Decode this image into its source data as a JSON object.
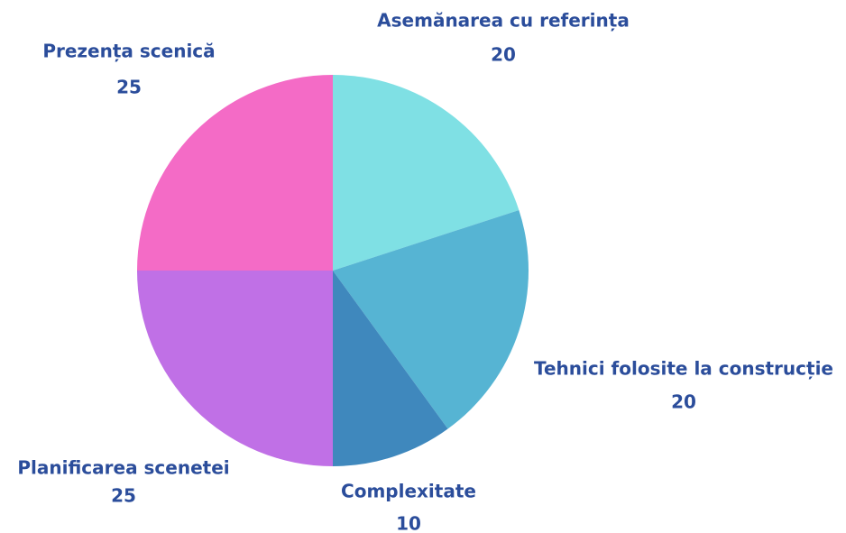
{
  "chart_data": {
    "type": "pie",
    "categories": [
      "Asemănarea cu referința",
      "Tehnici folosite la construcție",
      "Complexitate",
      "Planificarea scenetei",
      "Prezența scenică"
    ],
    "values": [
      20,
      20,
      10,
      25,
      25
    ],
    "colors": [
      "#7fe0e4",
      "#56b4d3",
      "#3f88bd",
      "#c070e6",
      "#f46bc6"
    ]
  }
}
